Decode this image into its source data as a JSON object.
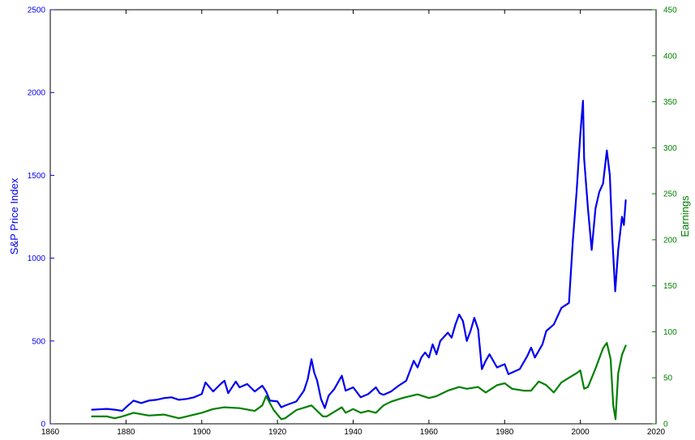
{
  "chart_data": {
    "type": "line",
    "title": "",
    "xlabel": "",
    "xlim": [
      1860,
      2020
    ],
    "x_ticks": [
      "1860",
      "1880",
      "1900",
      "1920",
      "1940",
      "1960",
      "1980",
      "2000",
      "2020"
    ],
    "y_left": {
      "label": "S&P Price Index",
      "lim": [
        0,
        2500
      ],
      "ticks": [
        "0",
        "500",
        "1000",
        "1500",
        "2000",
        "2500"
      ],
      "color": "#0000ee"
    },
    "y_right": {
      "label": "Earnings",
      "lim": [
        0,
        450
      ],
      "ticks": [
        "0",
        "50",
        "100",
        "150",
        "200",
        "250",
        "300",
        "350",
        "400",
        "450"
      ],
      "color": "#008000"
    },
    "grid": false,
    "series": [
      {
        "axis": "left",
        "color": "#0000ee",
        "x": [
          1871,
          1875,
          1877,
          1879,
          1880,
          1882,
          1884,
          1886,
          1888,
          1890,
          1892,
          1894,
          1896,
          1898,
          1900,
          1901,
          1903,
          1905,
          1906,
          1907,
          1909,
          1910,
          1912,
          1914,
          1916,
          1917,
          1918,
          1920,
          1921,
          1922,
          1925,
          1927,
          1928,
          1929,
          1929.7,
          1930.5,
          1931.5,
          1932.5,
          1933.5,
          1935,
          1937,
          1938,
          1940,
          1942,
          1944,
          1946,
          1947,
          1948,
          1950,
          1952,
          1954,
          1956,
          1957,
          1958,
          1959,
          1960,
          1961,
          1962,
          1963,
          1965,
          1966,
          1967,
          1968,
          1969,
          1970,
          1971,
          1972,
          1973,
          1974,
          1975,
          1976,
          1978,
          1980,
          1981,
          1982,
          1984,
          1986,
          1987,
          1988,
          1990,
          1991,
          1993,
          1995,
          1997,
          1998,
          1999,
          2000,
          2000.7,
          2001,
          2002,
          2003,
          2004,
          2005,
          2006,
          2007,
          2007.8,
          2008.5,
          2009.2,
          2010,
          2011,
          2011.5,
          2012
        ],
        "y": [
          85,
          90,
          85,
          78,
          100,
          140,
          125,
          140,
          145,
          155,
          160,
          145,
          150,
          160,
          180,
          250,
          195,
          240,
          260,
          185,
          255,
          220,
          240,
          195,
          230,
          195,
          140,
          135,
          100,
          110,
          135,
          200,
          270,
          390,
          310,
          260,
          150,
          95,
          170,
          210,
          290,
          200,
          220,
          160,
          180,
          220,
          185,
          175,
          195,
          230,
          260,
          380,
          340,
          400,
          430,
          400,
          480,
          420,
          500,
          550,
          520,
          600,
          660,
          620,
          500,
          560,
          640,
          570,
          330,
          380,
          420,
          340,
          360,
          300,
          310,
          330,
          410,
          460,
          400,
          480,
          560,
          600,
          700,
          730,
          1100,
          1400,
          1750,
          1950,
          1600,
          1300,
          1050,
          1300,
          1400,
          1450,
          1650,
          1500,
          1100,
          800,
          1050,
          1250,
          1200,
          1350
        ]
      },
      {
        "axis": "right",
        "color": "#008000",
        "x": [
          1871,
          1875,
          1877,
          1879,
          1882,
          1886,
          1890,
          1894,
          1896,
          1900,
          1903,
          1906,
          1910,
          1914,
          1916,
          1917,
          1919,
          1921,
          1922,
          1925,
          1929,
          1931,
          1932,
          1933,
          1937,
          1938,
          1940,
          1942,
          1944,
          1946,
          1948,
          1950,
          1953,
          1955,
          1957,
          1960,
          1962,
          1965,
          1968,
          1970,
          1973,
          1975,
          1978,
          1980,
          1982,
          1985,
          1987,
          1989,
          1991,
          1993,
          1995,
          1997,
          1999,
          2000,
          2001,
          2002,
          2004,
          2006,
          2007,
          2008,
          2008.7,
          2009.3,
          2010,
          2011,
          2012
        ],
        "y": [
          8,
          8,
          6,
          8,
          12,
          9,
          10,
          6,
          8,
          12,
          16,
          18,
          17,
          14,
          20,
          30,
          15,
          5,
          6,
          15,
          20,
          12,
          8,
          8,
          18,
          12,
          16,
          12,
          14,
          12,
          20,
          24,
          28,
          30,
          32,
          28,
          30,
          36,
          40,
          38,
          40,
          34,
          42,
          44,
          38,
          36,
          36,
          46,
          42,
          34,
          45,
          50,
          55,
          58,
          38,
          40,
          60,
          82,
          88,
          70,
          20,
          5,
          55,
          75,
          85
        ]
      }
    ]
  }
}
